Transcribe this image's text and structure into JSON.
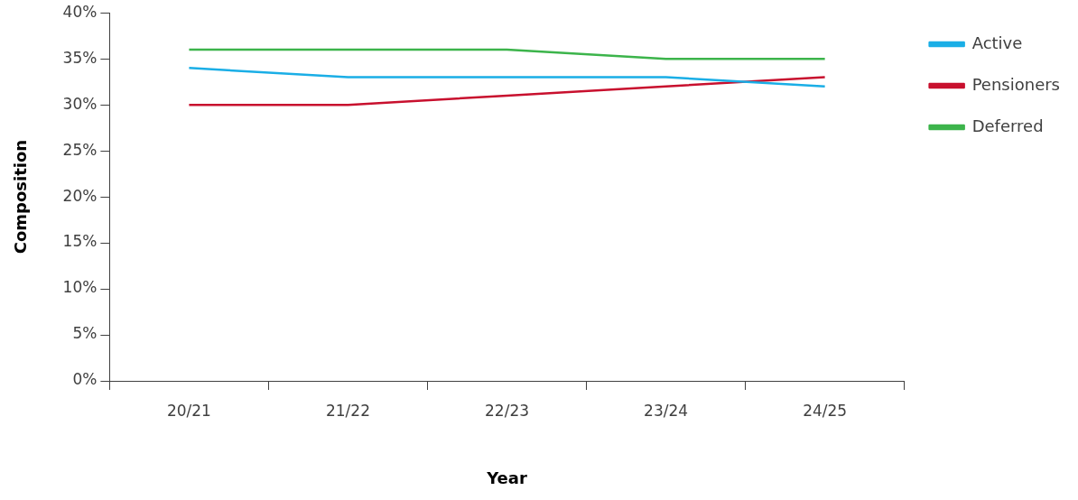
{
  "chart_data": {
    "type": "line",
    "xlabel": "Year",
    "ylabel": "Composition",
    "categories": [
      "20/21",
      "21/22",
      "22/23",
      "23/24",
      "24/25"
    ],
    "series": [
      {
        "name": "Active",
        "color": "#1aaee6",
        "values": [
          34,
          33,
          33,
          33,
          32
        ]
      },
      {
        "name": "Pensioners",
        "color": "#c8102e",
        "values": [
          30,
          30,
          31,
          32,
          33
        ]
      },
      {
        "name": "Deferred",
        "color": "#3cb44b",
        "values": [
          36,
          36,
          36,
          35,
          35
        ]
      }
    ],
    "ylim": [
      0,
      40
    ],
    "yticks": [
      {
        "value": 0,
        "label": "0%"
      },
      {
        "value": 5,
        "label": "5%"
      },
      {
        "value": 10,
        "label": "10%"
      },
      {
        "value": 15,
        "label": "15%"
      },
      {
        "value": 20,
        "label": "20%"
      },
      {
        "value": 25,
        "label": "25%"
      },
      {
        "value": 30,
        "label": "30%"
      },
      {
        "value": 35,
        "label": "35%"
      },
      {
        "value": 40,
        "label": "40%"
      }
    ],
    "grid": false,
    "legend": "top right",
    "marker": "none",
    "line_style": "solid"
  }
}
